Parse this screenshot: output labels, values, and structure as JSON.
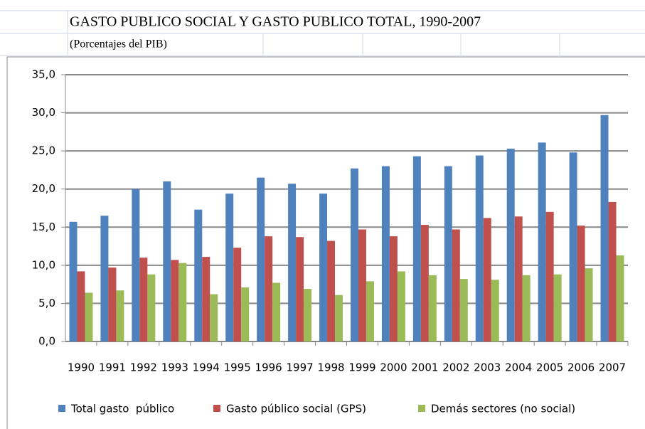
{
  "chart_data": {
    "type": "bar",
    "title": "GASTO PUBLICO SOCIAL Y GASTO PUBLICO TOTAL, 1990-2007",
    "subtitle": "(Porcentajes del PIB)",
    "categories": [
      "1990",
      "1991",
      "1992",
      "1993",
      "1994",
      "1995",
      "1996",
      "1997",
      "1998",
      "1999",
      "2000",
      "2001",
      "2002",
      "2003",
      "2004",
      "2005",
      "2006",
      "2007"
    ],
    "series": [
      {
        "name": "Total gasto  público",
        "color": "#4f81bd",
        "values": [
          15.7,
          16.5,
          20.0,
          21.0,
          17.3,
          19.4,
          21.5,
          20.7,
          19.4,
          22.7,
          23.0,
          24.3,
          23.0,
          24.4,
          25.3,
          26.1,
          24.8,
          29.7
        ]
      },
      {
        "name": "Gasto público social (GPS)",
        "color": "#c0504d",
        "values": [
          9.2,
          9.7,
          11.0,
          10.7,
          11.1,
          12.3,
          13.8,
          13.7,
          13.2,
          14.7,
          13.8,
          15.3,
          14.7,
          16.2,
          16.4,
          17.0,
          15.2,
          18.3
        ]
      },
      {
        "name": "Demás sectores (no social)",
        "color": "#9bbb59",
        "values": [
          6.4,
          6.7,
          8.8,
          10.3,
          6.2,
          7.1,
          7.7,
          6.9,
          6.1,
          7.9,
          9.2,
          8.7,
          8.2,
          8.1,
          8.7,
          8.8,
          9.6,
          11.3
        ]
      }
    ],
    "ylim": [
      0,
      35
    ],
    "yticks": [
      {
        "value": 0,
        "label": "0,0"
      },
      {
        "value": 5,
        "label": "5,0"
      },
      {
        "value": 10,
        "label": "10,0"
      },
      {
        "value": 15,
        "label": "15,0"
      },
      {
        "value": 20,
        "label": "20,0"
      },
      {
        "value": 25,
        "label": "25,0"
      },
      {
        "value": 30,
        "label": "30,0"
      },
      {
        "value": 35,
        "label": "35,0"
      }
    ],
    "grid": true,
    "legend": "bottom"
  }
}
